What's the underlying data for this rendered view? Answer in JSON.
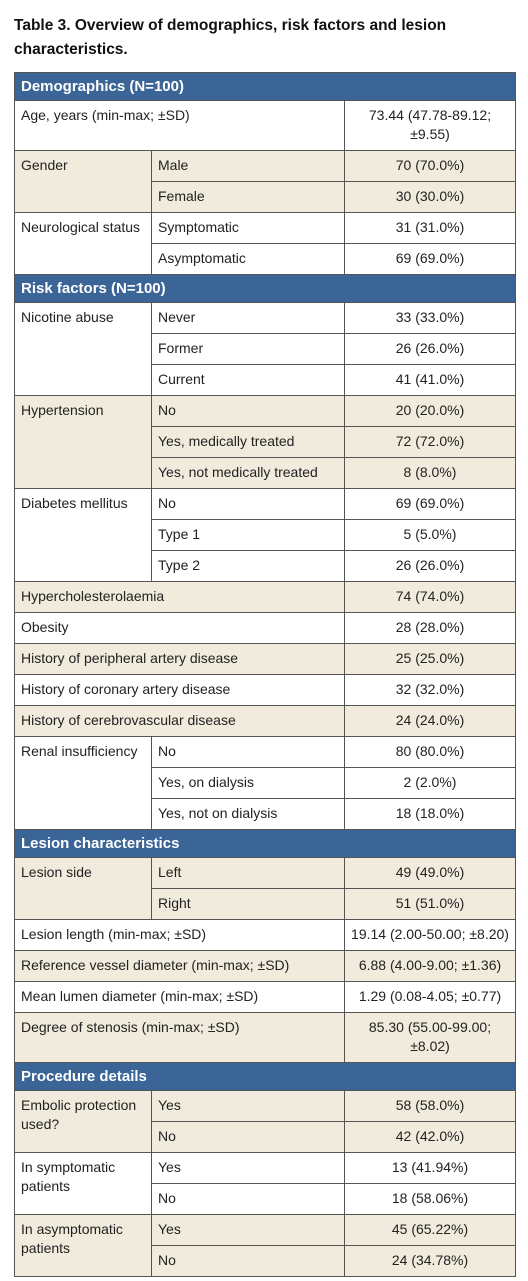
{
  "title": "Table 3. Overview of demographics, risk factors and lesion characteristics.",
  "sections": [
    {
      "header": "Demographics (N=100)",
      "groups": [
        {
          "label": "Age, years (min-max; ±SD)",
          "value": "73.44 (47.78-89.12; ±9.55)"
        },
        {
          "label": "Gender",
          "rows": [
            {
              "label": "Male",
              "value": "70 (70.0%)"
            },
            {
              "label": "Female",
              "value": "30 (30.0%)"
            }
          ]
        },
        {
          "label": "Neurological status",
          "rows": [
            {
              "label": "Symptomatic",
              "value": "31 (31.0%)"
            },
            {
              "label": "Asymptomatic",
              "value": "69 (69.0%)"
            }
          ]
        }
      ]
    },
    {
      "header": "Risk factors (N=100)",
      "groups": [
        {
          "label": "Nicotine abuse",
          "rows": [
            {
              "label": "Never",
              "value": "33 (33.0%)"
            },
            {
              "label": "Former",
              "value": "26 (26.0%)"
            },
            {
              "label": "Current",
              "value": "41 (41.0%)"
            }
          ]
        },
        {
          "label": "Hypertension",
          "rows": [
            {
              "label": "No",
              "value": "20 (20.0%)"
            },
            {
              "label": "Yes, medically treated",
              "value": "72 (72.0%)"
            },
            {
              "label": "Yes, not medically treated",
              "value": "8 (8.0%)"
            }
          ]
        },
        {
          "label": "Diabetes mellitus",
          "rows": [
            {
              "label": "No",
              "value": "69 (69.0%)"
            },
            {
              "label": "Type 1",
              "value": "5 (5.0%)"
            },
            {
              "label": "Type 2",
              "value": "26 (26.0%)"
            }
          ]
        },
        {
          "label": "Hypercholesterolaemia",
          "value": "74 (74.0%)"
        },
        {
          "label": "Obesity",
          "value": "28 (28.0%)"
        },
        {
          "label": "History of peripheral artery disease",
          "value": "25 (25.0%)"
        },
        {
          "label": "History of coronary artery disease",
          "value": "32 (32.0%)"
        },
        {
          "label": "History of cerebrovascular disease",
          "value": "24 (24.0%)"
        },
        {
          "label": "Renal insufficiency",
          "rows": [
            {
              "label": "No",
              "value": "80 (80.0%)"
            },
            {
              "label": "Yes, on dialysis",
              "value": "2 (2.0%)"
            },
            {
              "label": "Yes, not on dialysis",
              "value": "18 (18.0%)"
            }
          ]
        }
      ]
    },
    {
      "header": "Lesion characteristics",
      "groups": [
        {
          "label": "Lesion side",
          "rows": [
            {
              "label": "Left",
              "value": "49 (49.0%)"
            },
            {
              "label": "Right",
              "value": "51 (51.0%)"
            }
          ]
        },
        {
          "label": "Lesion length (min-max; ±SD)",
          "value": "19.14 (2.00-50.00; ±8.20)"
        },
        {
          "label": "Reference vessel diameter (min-max; ±SD)",
          "value": "6.88 (4.00-9.00; ±1.36)"
        },
        {
          "label": "Mean lumen diameter (min-max; ±SD)",
          "value": "1.29 (0.08-4.05; ±0.77)"
        },
        {
          "label": "Degree of stenosis (min-max; ±SD)",
          "value": "85.30 (55.00-99.00; ±8.02)"
        }
      ]
    },
    {
      "header": "Procedure details",
      "groups": [
        {
          "label": "Embolic protection used?",
          "rows": [
            {
              "label": "Yes",
              "value": "58 (58.0%)"
            },
            {
              "label": "No",
              "value": "42 (42.0%)"
            }
          ]
        },
        {
          "label": "In symptomatic patients",
          "rows": [
            {
              "label": "Yes",
              "value": "13 (41.94%)"
            },
            {
              "label": "No",
              "value": "18 (58.06%)"
            }
          ]
        },
        {
          "label": "In asymptomatic patients",
          "rows": [
            {
              "label": "Yes",
              "value": "45 (65.22%)"
            },
            {
              "label": "No",
              "value": "24 (34.78%)"
            }
          ]
        }
      ]
    }
  ]
}
